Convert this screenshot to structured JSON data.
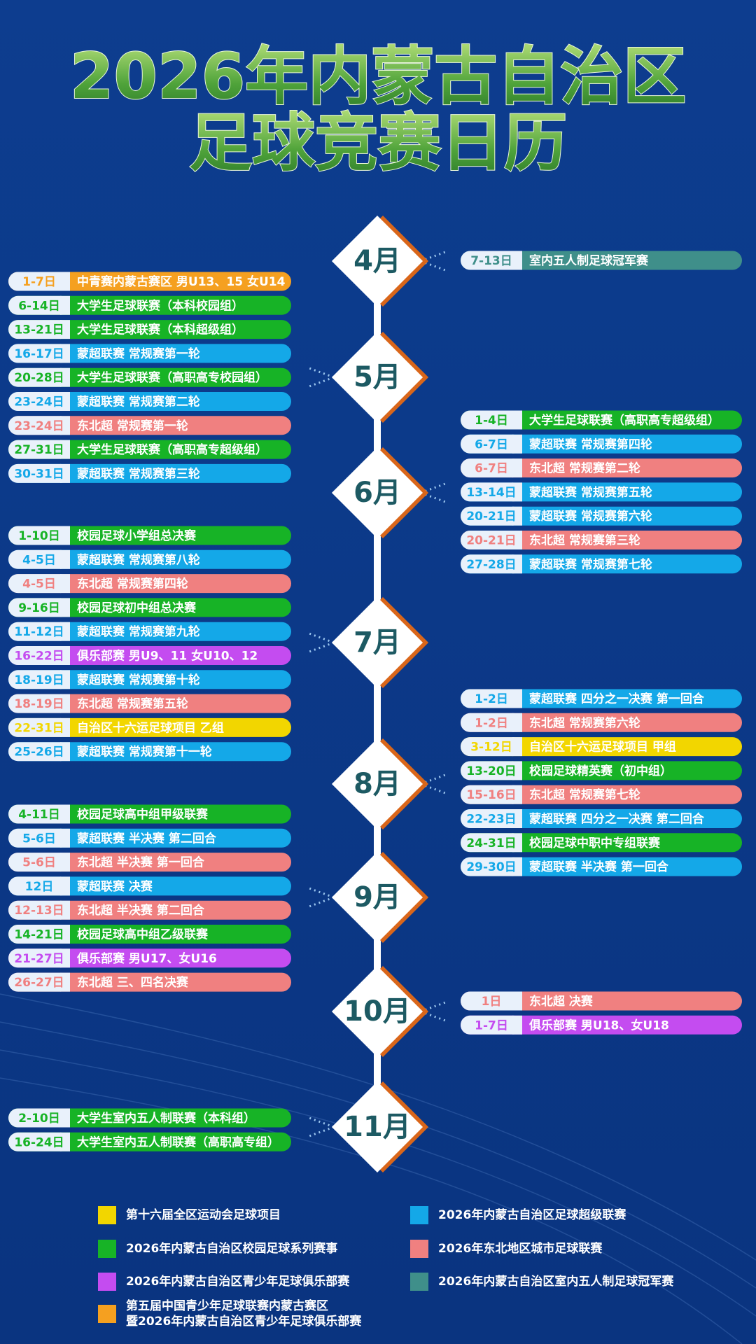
{
  "header": {
    "title_lines": [
      "2026年内蒙古自治区",
      "足球竞赛日历"
    ]
  },
  "months": [
    {
      "label": "4月",
      "side": "right",
      "events": [
        {
          "date": "7-13日",
          "name": "室内五人制足球冠军赛",
          "color": "#3f8f8a"
        }
      ]
    },
    {
      "label": "5月",
      "side": "left",
      "events": [
        {
          "date": "1-7日",
          "name": "中青赛内蒙古赛区 男U13、15 女U14",
          "color": "#f5a020"
        },
        {
          "date": "6-14日",
          "name": "大学生足球联赛（本科校园组）",
          "color": "#17b326"
        },
        {
          "date": "13-21日",
          "name": "大学生足球联赛（本科超级组）",
          "color": "#17b326"
        },
        {
          "date": "16-17日",
          "name": "蒙超联赛 常规赛第一轮",
          "color": "#14a8e8"
        },
        {
          "date": "20-28日",
          "name": "大学生足球联赛（高职高专校园组）",
          "color": "#17b326"
        },
        {
          "date": "23-24日",
          "name": "蒙超联赛 常规赛第二轮",
          "color": "#14a8e8"
        },
        {
          "date": "23-24日",
          "name": "东北超 常规赛第一轮",
          "color": "#f08080"
        },
        {
          "date": "27-31日",
          "name": "大学生足球联赛（高职高专超级组）",
          "color": "#17b326"
        },
        {
          "date": "30-31日",
          "name": "蒙超联赛 常规赛第三轮",
          "color": "#14a8e8"
        }
      ]
    },
    {
      "label": "6月",
      "side": "right",
      "events": [
        {
          "date": "1-4日",
          "name": "大学生足球联赛（高职高专超级组）",
          "color": "#17b326"
        },
        {
          "date": "6-7日",
          "name": "蒙超联赛 常规赛第四轮",
          "color": "#14a8e8"
        },
        {
          "date": "6-7日",
          "name": "东北超 常规赛第二轮",
          "color": "#f08080"
        },
        {
          "date": "13-14日",
          "name": "蒙超联赛 常规赛第五轮",
          "color": "#14a8e8"
        },
        {
          "date": "20-21日",
          "name": "蒙超联赛 常规赛第六轮",
          "color": "#14a8e8"
        },
        {
          "date": "20-21日",
          "name": "东北超 常规赛第三轮",
          "color": "#f08080"
        },
        {
          "date": "27-28日",
          "name": "蒙超联赛 常规赛第七轮",
          "color": "#14a8e8"
        }
      ]
    },
    {
      "label": "7月",
      "side": "left",
      "events": [
        {
          "date": "1-10日",
          "name": "校园足球小学组总决赛",
          "color": "#17b326"
        },
        {
          "date": "4-5日",
          "name": "蒙超联赛 常规赛第八轮",
          "color": "#14a8e8"
        },
        {
          "date": "4-5日",
          "name": "东北超 常规赛第四轮",
          "color": "#f08080"
        },
        {
          "date": "9-16日",
          "name": "校园足球初中组总决赛",
          "color": "#17b326"
        },
        {
          "date": "11-12日",
          "name": "蒙超联赛 常规赛第九轮",
          "color": "#14a8e8"
        },
        {
          "date": "16-22日",
          "name": "俱乐部赛 男U9、11 女U10、12",
          "color": "#c44cf0"
        },
        {
          "date": "18-19日",
          "name": "蒙超联赛 常规赛第十轮",
          "color": "#14a8e8"
        },
        {
          "date": "18-19日",
          "name": "东北超 常规赛第五轮",
          "color": "#f08080"
        },
        {
          "date": "22-31日",
          "name": "自治区十六运足球项目 乙组",
          "color": "#f2d600"
        },
        {
          "date": "25-26日",
          "name": "蒙超联赛 常规赛第十一轮",
          "color": "#14a8e8"
        }
      ]
    },
    {
      "label": "8月",
      "side": "right",
      "events": [
        {
          "date": "1-2日",
          "name": "蒙超联赛 四分之一决赛 第一回合",
          "color": "#14a8e8"
        },
        {
          "date": "1-2日",
          "name": "东北超 常规赛第六轮",
          "color": "#f08080"
        },
        {
          "date": "3-12日",
          "name": "自治区十六运足球项目 甲组",
          "color": "#f2d600"
        },
        {
          "date": "13-20日",
          "name": "校园足球精英赛（初中组）",
          "color": "#17b326"
        },
        {
          "date": "15-16日",
          "name": "东北超 常规赛第七轮",
          "color": "#f08080"
        },
        {
          "date": "22-23日",
          "name": "蒙超联赛 四分之一决赛 第二回合",
          "color": "#14a8e8"
        },
        {
          "date": "24-31日",
          "name": "校园足球中职中专组联赛",
          "color": "#17b326"
        },
        {
          "date": "29-30日",
          "name": "蒙超联赛 半决赛 第一回合",
          "color": "#14a8e8"
        }
      ]
    },
    {
      "label": "9月",
      "side": "left",
      "events": [
        {
          "date": "4-11日",
          "name": "校园足球高中组甲级联赛",
          "color": "#17b326"
        },
        {
          "date": "5-6日",
          "name": "蒙超联赛 半决赛 第二回合",
          "color": "#14a8e8"
        },
        {
          "date": "5-6日",
          "name": "东北超 半决赛 第一回合",
          "color": "#f08080"
        },
        {
          "date": "12日",
          "name": "蒙超联赛 决赛",
          "color": "#14a8e8"
        },
        {
          "date": "12-13日",
          "name": "东北超 半决赛 第二回合",
          "color": "#f08080"
        },
        {
          "date": "14-21日",
          "name": "校园足球高中组乙级联赛",
          "color": "#17b326"
        },
        {
          "date": "21-27日",
          "name": "俱乐部赛 男U17、女U16",
          "color": "#c44cf0"
        },
        {
          "date": "26-27日",
          "name": "东北超 三、四名决赛",
          "color": "#f08080"
        }
      ]
    },
    {
      "label": "10月",
      "side": "right",
      "events": [
        {
          "date": "1日",
          "name": "东北超 决赛",
          "color": "#f08080"
        },
        {
          "date": "1-7日",
          "name": "俱乐部赛 男U18、女U18",
          "color": "#c44cf0"
        }
      ]
    },
    {
      "label": "11月",
      "side": "left",
      "events": [
        {
          "date": "2-10日",
          "name": "大学生室内五人制联赛（本科组）",
          "color": "#17b326"
        },
        {
          "date": "16-24日",
          "name": "大学生室内五人制联赛（高职高专组）",
          "color": "#17b326"
        }
      ]
    }
  ],
  "legend": [
    {
      "color": "#f2d600",
      "lines": [
        "第十六届全区运动会足球项目"
      ]
    },
    {
      "color": "#17b326",
      "lines": [
        "2026年内蒙古自治区校园足球系列赛事"
      ]
    },
    {
      "color": "#c44cf0",
      "lines": [
        "2026年内蒙古自治区青少年足球俱乐部赛"
      ]
    },
    {
      "color": "#f5a020",
      "lines": [
        "第五届中国青少年足球联赛内蒙古赛区",
        "暨2026年内蒙古自治区青少年足球俱乐部赛"
      ]
    },
    {
      "color": "#14a8e8",
      "lines": [
        "2026年内蒙古自治区足球超级联赛"
      ]
    },
    {
      "color": "#f08080",
      "lines": [
        "2026年东北地区城市足球联赛"
      ]
    },
    {
      "color": "#3f8f8a",
      "lines": [
        "2026年内蒙古自治区室内五人制足球冠军赛"
      ]
    }
  ]
}
